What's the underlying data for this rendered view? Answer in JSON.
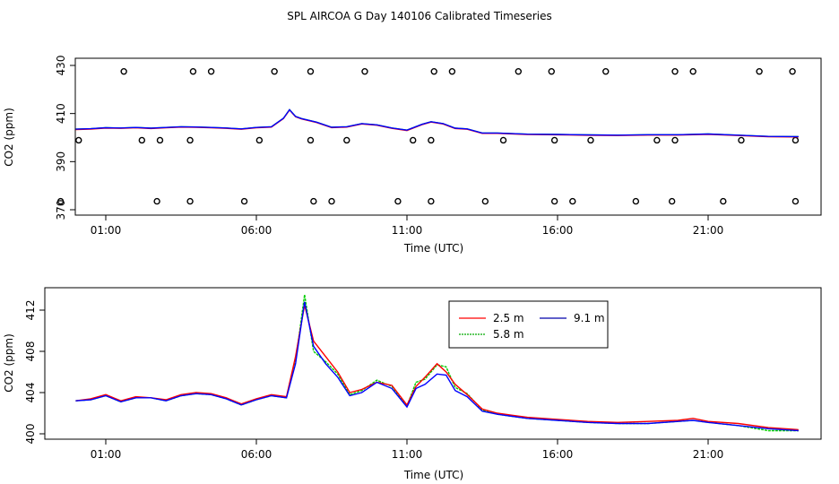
{
  "title": "SPL AIRCOA G  Day 140106  Calibrated Timeseries",
  "colors": {
    "s1": "#ff0000",
    "s2": "#00cc00",
    "s3": "#0000ff",
    "frame": "#000000",
    "points": "#000000"
  },
  "chart_data": [
    {
      "type": "scatter",
      "xlabel": "Time (UTC)",
      "ylabel": "CO2 (ppm)",
      "xlim": [
        0,
        24
      ],
      "ylim": [
        368,
        430
      ],
      "x_ticks": [
        1,
        6,
        11,
        16,
        21
      ],
      "x_tick_labels": [
        "01:00",
        "06:00",
        "11:00",
        "16:00",
        "21:00"
      ],
      "y_ticks": [
        370,
        390,
        410,
        430
      ],
      "y_tick_labels": [
        "370",
        "390",
        "410",
        "430"
      ],
      "line_x": [
        0,
        0.5,
        1,
        1.5,
        2,
        2.5,
        3,
        3.5,
        4,
        4.5,
        5,
        5.5,
        6,
        6.5,
        6.9,
        7.1,
        7.3,
        7.5,
        8,
        8.5,
        9,
        9.5,
        10,
        10.5,
        11,
        11.5,
        11.8,
        12.2,
        12.6,
        13,
        13.5,
        14,
        15,
        16,
        17,
        18,
        19,
        20,
        21,
        22,
        23,
        24
      ],
      "line_y": [
        403.5,
        403.7,
        404.1,
        404.0,
        404.2,
        403.9,
        404.2,
        404.5,
        404.4,
        404.2,
        404.0,
        403.6,
        404.2,
        404.5,
        408,
        411.6,
        408.8,
        407.9,
        406.4,
        404.3,
        404.5,
        405.8,
        405.3,
        404.0,
        403.1,
        405.5,
        406.6,
        405.8,
        403.9,
        403.6,
        401.9,
        401.9,
        401.4,
        401.3,
        401.1,
        401.0,
        401.2,
        401.2,
        401.5,
        401.0,
        400.5,
        400.4
      ],
      "calibration_points": {
        "x": [
          1.6,
          3.9,
          4.5,
          6.6,
          7.8,
          9.6,
          11.9,
          12.5,
          14.7,
          15.8,
          17.6,
          19.9,
          20.5,
          22.7,
          23.8,
          0.1,
          2.2,
          2.8,
          3.8,
          6.1,
          7.8,
          9.0,
          11.2,
          11.8,
          14.2,
          15.9,
          17.1,
          19.3,
          19.9,
          22.1,
          23.9,
          -0.5,
          2.7,
          3.8,
          5.6,
          7.9,
          8.5,
          10.7,
          11.8,
          13.6,
          15.9,
          16.5,
          18.6,
          19.8,
          21.5,
          23.9
        ],
        "y": [
          427.5,
          427.5,
          427.5,
          427.5,
          427.5,
          427.5,
          427.5,
          427.5,
          427.5,
          427.5,
          427.5,
          427.5,
          427.5,
          427.5,
          427.5,
          398.9,
          398.9,
          398.9,
          398.9,
          398.9,
          398.9,
          398.9,
          398.9,
          398.9,
          398.9,
          398.9,
          398.9,
          398.9,
          398.9,
          398.9,
          398.9,
          373.5,
          373.5,
          373.5,
          373.5,
          373.5,
          373.5,
          373.5,
          373.5,
          373.5,
          373.5,
          373.5,
          373.5,
          373.5,
          373.5,
          373.5
        ]
      }
    },
    {
      "type": "line",
      "xlabel": "Time (UTC)",
      "ylabel": "CO2 (ppm)",
      "xlim": [
        -1,
        24
      ],
      "ylim": [
        399.5,
        414.5
      ],
      "x_ticks": [
        1,
        6,
        11,
        16,
        21
      ],
      "x_tick_labels": [
        "01:00",
        "06:00",
        "11:00",
        "16:00",
        "21:00"
      ],
      "y_ticks": [
        400,
        404,
        408,
        412
      ],
      "y_tick_labels": [
        "400",
        "404",
        "408",
        "412"
      ],
      "x": [
        0,
        0.5,
        1,
        1.5,
        2,
        2.5,
        3,
        3.5,
        4,
        4.5,
        5,
        5.5,
        6,
        6.5,
        7,
        7.3,
        7.6,
        7.9,
        8.3,
        8.7,
        9.1,
        9.5,
        10,
        10.5,
        11,
        11.3,
        11.6,
        12,
        12.3,
        12.6,
        13,
        13.5,
        14,
        14.5,
        15,
        16,
        17,
        18,
        19,
        20,
        20.5,
        21,
        22,
        23,
        24
      ],
      "series": [
        {
          "name": "2.5 m",
          "color": "#ff0000",
          "values": [
            403.2,
            403.4,
            403.8,
            403.2,
            403.6,
            403.5,
            403.3,
            403.8,
            404.0,
            403.9,
            403.5,
            402.9,
            403.4,
            403.8,
            403.6,
            407.5,
            412.5,
            409.0,
            407.5,
            406.0,
            404.0,
            404.3,
            405.0,
            404.7,
            402.8,
            404.6,
            405.5,
            406.8,
            406.0,
            404.8,
            403.8,
            402.4,
            402.0,
            401.8,
            401.6,
            401.4,
            401.2,
            401.1,
            401.2,
            401.3,
            401.5,
            401.2,
            401.0,
            400.6,
            400.4
          ]
        },
        {
          "name": "5.8 m",
          "color": "#00cc00",
          "values": [
            403.2,
            403.3,
            403.7,
            403.1,
            403.5,
            403.5,
            403.2,
            403.7,
            403.9,
            403.8,
            403.4,
            402.8,
            403.3,
            403.7,
            403.5,
            407.0,
            413.5,
            408.0,
            407.0,
            405.8,
            403.8,
            404.2,
            405.2,
            404.6,
            402.7,
            405.0,
            405.3,
            406.7,
            406.5,
            404.5,
            403.9,
            402.3,
            401.9,
            401.7,
            401.5,
            401.3,
            401.1,
            401.0,
            401.0,
            401.2,
            401.3,
            401.1,
            400.8,
            400.3,
            400.3
          ]
        },
        {
          "name": "9.1 m",
          "color": "#0000ff",
          "values": [
            403.2,
            403.3,
            403.7,
            403.1,
            403.5,
            403.5,
            403.2,
            403.7,
            403.9,
            403.8,
            403.4,
            402.8,
            403.3,
            403.7,
            403.5,
            406.8,
            412.8,
            408.5,
            406.8,
            405.5,
            403.7,
            404.0,
            405.0,
            404.4,
            402.6,
            404.4,
            404.8,
            405.8,
            405.7,
            404.2,
            403.6,
            402.2,
            401.9,
            401.7,
            401.5,
            401.3,
            401.1,
            401.0,
            401.0,
            401.2,
            401.3,
            401.1,
            400.8,
            400.5,
            400.3
          ]
        }
      ],
      "legend": {
        "position": "top-right-of-center",
        "entries": [
          "2.5 m",
          "9.1 m",
          "5.8 m"
        ]
      }
    }
  ]
}
